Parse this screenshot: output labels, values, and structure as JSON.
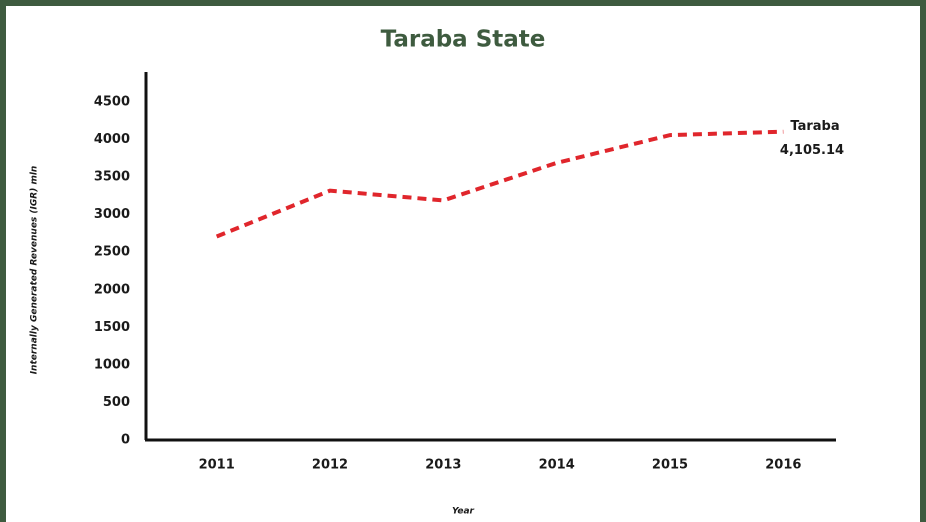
{
  "chart_data": {
    "type": "line",
    "title": "Taraba State",
    "x_label": "Year",
    "y_label": "Internally Generated Revenues (IGR)  mln",
    "categories": [
      "2011",
      "2012",
      "2013",
      "2014",
      "2015",
      "2016"
    ],
    "series": [
      {
        "name": "Taraba",
        "color": "#e0262c",
        "values": [
          2710,
          3320,
          3190,
          3690,
          4060,
          4105.14
        ],
        "value_labels": [
          null,
          null,
          null,
          null,
          null,
          "4,105.14"
        ]
      }
    ],
    "ylim": [
      0,
      4900
    ],
    "yticks": [
      0,
      500,
      1000,
      1500,
      2000,
      2500,
      3000,
      3500,
      4000,
      4500
    ],
    "grid": false
  }
}
